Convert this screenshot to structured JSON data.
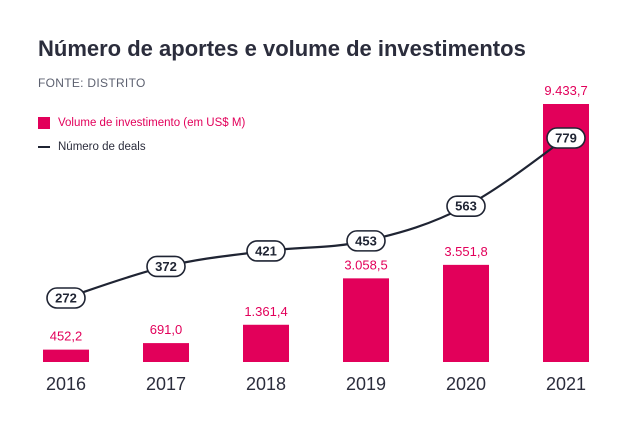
{
  "title": "Número de aportes e volume de investimentos",
  "source": "FONTE: DISTRITO",
  "legend": {
    "bars": "Volume de investimento (em US$ M)",
    "line": "Número de deals"
  },
  "colors": {
    "bar": "#e2005a",
    "line": "#1f2433",
    "text": "#2b2d3c"
  },
  "chart_data": {
    "type": "bar",
    "categories": [
      "2016",
      "2017",
      "2018",
      "2019",
      "2020",
      "2021"
    ],
    "series": [
      {
        "name": "Volume de investimento (em US$ M)",
        "type": "bar",
        "values": [
          452.2,
          691.0,
          1361.4,
          3058.5,
          3551.8,
          9433.7
        ],
        "labels": [
          "452,2",
          "691,0",
          "1.361,4",
          "3.058,5",
          "3.551,8",
          "9.433,7"
        ]
      },
      {
        "name": "Número de deals",
        "type": "line",
        "values": [
          272,
          372,
          421,
          453,
          563,
          779
        ],
        "labels": [
          "272",
          "372",
          "421",
          "453",
          "563",
          "779"
        ]
      }
    ],
    "grid": false,
    "legend_position": "top-left"
  }
}
